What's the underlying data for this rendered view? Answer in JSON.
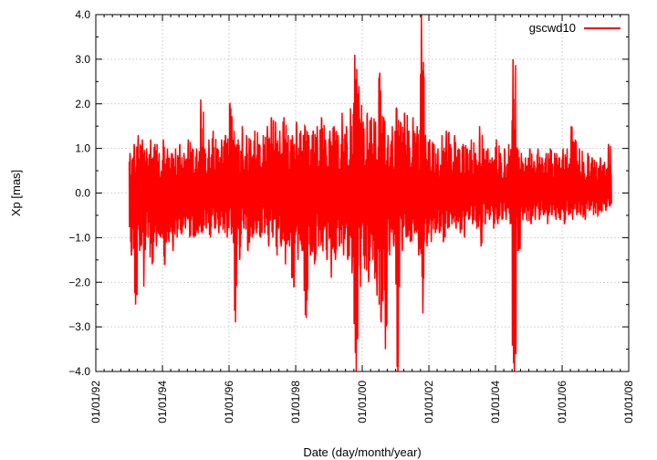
{
  "chart_data": {
    "type": "line",
    "title": "",
    "xlabel": "Date (day/month/year)",
    "ylabel": "Xp [mas]",
    "x_ticks": [
      "01/01/92",
      "01/01/94",
      "01/01/96",
      "01/01/98",
      "01/01/00",
      "01/01/02",
      "01/01/04",
      "01/01/06",
      "01/01/08"
    ],
    "y_ticks": [
      "-4.0",
      "-3.0",
      "-2.0",
      "-1.0",
      "0.0",
      "1.0",
      "2.0",
      "3.0",
      "4.0"
    ],
    "xlim": [
      "1992-01-01",
      "2008-01-01"
    ],
    "ylim": [
      -4.0,
      4.0
    ],
    "grid": true,
    "legend_position": "top-right",
    "color": "#ff0000",
    "series": [
      {
        "name": "gscwd10",
        "x": [
          "1993-01-01",
          "1993-02-15",
          "1993-04-01",
          "1993-05-15",
          "1993-07-01",
          "1993-08-15",
          "1993-10-01",
          "1993-11-15",
          "1994-01-01",
          "1994-02-15",
          "1994-04-01",
          "1994-05-15",
          "1994-07-01",
          "1994-08-15",
          "1994-10-01",
          "1994-11-15",
          "1995-01-01",
          "1995-02-15",
          "1995-04-01",
          "1995-05-15",
          "1995-07-01",
          "1995-08-15",
          "1995-10-01",
          "1995-11-15",
          "1996-01-01",
          "1996-02-15",
          "1996-04-01",
          "1996-05-15",
          "1996-07-01",
          "1996-08-15",
          "1996-10-01",
          "1996-11-15",
          "1997-01-01",
          "1997-02-15",
          "1997-04-01",
          "1997-05-15",
          "1997-07-01",
          "1997-08-15",
          "1997-10-01",
          "1997-11-15",
          "1998-01-01",
          "1998-02-15",
          "1998-04-01",
          "1998-05-15",
          "1998-07-01",
          "1998-08-15",
          "1998-10-01",
          "1998-11-15",
          "1999-01-01",
          "1999-02-15",
          "1999-04-01",
          "1999-05-15",
          "1999-07-01",
          "1999-08-15",
          "1999-10-01",
          "1999-11-15",
          "2000-01-01",
          "2000-02-15",
          "2000-04-01",
          "2000-05-15",
          "2000-07-01",
          "2000-08-15",
          "2000-10-01",
          "2000-11-15",
          "2001-01-01",
          "2001-02-15",
          "2001-04-01",
          "2001-05-15",
          "2001-07-01",
          "2001-08-15",
          "2001-10-01",
          "2001-11-15",
          "2002-01-01",
          "2002-02-15",
          "2002-04-01",
          "2002-05-15",
          "2002-07-01",
          "2002-08-15",
          "2002-10-01",
          "2002-11-15",
          "2003-01-01",
          "2003-02-15",
          "2003-04-01",
          "2003-05-15",
          "2003-07-01",
          "2003-08-15",
          "2003-10-01",
          "2003-11-15",
          "2004-01-01",
          "2004-02-15",
          "2004-04-01",
          "2004-05-15",
          "2004-07-01",
          "2004-08-15",
          "2004-10-01",
          "2004-11-15",
          "2005-01-01",
          "2005-02-15",
          "2005-04-01",
          "2005-05-15",
          "2005-07-01",
          "2005-08-15",
          "2005-10-01",
          "2005-11-15",
          "2006-01-01",
          "2006-02-15",
          "2006-04-01",
          "2006-05-15",
          "2006-07-01",
          "2006-08-15",
          "2006-10-01",
          "2006-11-15",
          "2007-01-01",
          "2007-02-15",
          "2007-04-01",
          "2007-05-15"
        ],
        "upper": [
          0.9,
          1.1,
          1.3,
          1.2,
          1.0,
          1.2,
          1.1,
          0.9,
          1.2,
          1.0,
          0.9,
          1.0,
          1.1,
          0.9,
          1.2,
          1.0,
          1.0,
          2.1,
          1.0,
          1.2,
          1.4,
          1.0,
          1.2,
          1.3,
          2.0,
          1.4,
          1.2,
          1.5,
          1.3,
          1.2,
          1.4,
          1.1,
          1.3,
          1.5,
          1.7,
          1.6,
          1.4,
          1.7,
          1.3,
          1.3,
          1.6,
          1.4,
          1.5,
          1.3,
          1.4,
          1.5,
          1.7,
          1.2,
          1.4,
          1.5,
          1.3,
          1.8,
          1.5,
          1.9,
          3.1,
          2.4,
          1.6,
          1.8,
          1.7,
          1.6,
          2.7,
          1.7,
          1.3,
          1.5,
          1.9,
          1.6,
          1.8,
          1.4,
          1.7,
          1.5,
          4.0,
          1.3,
          1.2,
          1.1,
          1.0,
          1.3,
          1.4,
          1.1,
          1.3,
          1.0,
          1.1,
          1.0,
          1.2,
          0.9,
          1.5,
          1.0,
          1.0,
          0.8,
          1.2,
          0.9,
          1.0,
          1.1,
          3.0,
          1.0,
          0.9,
          0.8,
          1.0,
          0.7,
          1.0,
          0.8,
          0.9,
          1.0,
          0.9,
          0.8,
          1.0,
          1.0,
          1.5,
          1.2,
          1.0,
          0.7,
          0.9,
          0.8,
          0.7,
          0.8,
          0.7,
          1.1
        ],
        "lower": [
          -1.4,
          -2.5,
          -1.3,
          -2.1,
          -1.0,
          -1.6,
          -1.2,
          -1.0,
          -1.6,
          -1.1,
          -1.3,
          -1.0,
          -0.9,
          -0.8,
          -1.0,
          -1.0,
          -0.9,
          -0.9,
          -0.8,
          -1.0,
          -0.8,
          -0.9,
          -0.8,
          -1.0,
          -0.9,
          -2.9,
          -1.5,
          -0.8,
          -1.3,
          -1.0,
          -0.9,
          -1.0,
          -0.9,
          -1.2,
          -1.0,
          -1.4,
          -1.2,
          -1.6,
          -1.2,
          -2.1,
          -1.5,
          -1.3,
          -2.8,
          -1.4,
          -1.6,
          -1.2,
          -1.3,
          -1.5,
          -1.9,
          -1.5,
          -1.2,
          -1.4,
          -1.5,
          -1.8,
          -4.0,
          -2.1,
          -1.7,
          -2.0,
          -1.5,
          -2.3,
          -2.9,
          -3.5,
          -1.4,
          -1.2,
          -4.0,
          -1.3,
          -1.0,
          -1.1,
          -0.9,
          -1.4,
          -2.7,
          -1.2,
          -1.1,
          -0.9,
          -0.9,
          -1.1,
          -0.8,
          -0.7,
          -0.8,
          -0.9,
          -1.0,
          -0.6,
          -0.7,
          -0.8,
          -1.2,
          -0.7,
          -0.6,
          -0.8,
          -0.7,
          -0.6,
          -0.6,
          -0.7,
          -4.0,
          -1.3,
          -0.6,
          -0.6,
          -0.7,
          -0.6,
          -0.6,
          -0.5,
          -0.7,
          -0.5,
          -0.6,
          -0.6,
          -0.7,
          -0.5,
          -0.6,
          -0.5,
          -0.5,
          -0.6,
          -0.4,
          -0.5,
          -0.5,
          -0.4,
          -0.4,
          -0.3
        ]
      }
    ]
  }
}
